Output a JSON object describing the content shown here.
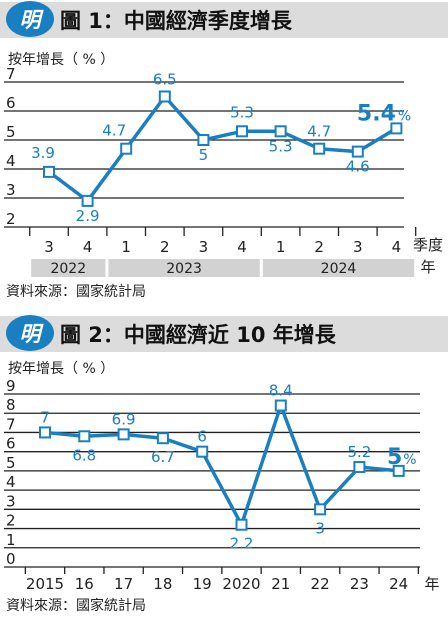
{
  "chart_data": [
    {
      "type": "line",
      "title": "圖 1：中國經濟季度增長",
      "badge": "明",
      "ylabel": "按年增長（ % ）",
      "xlabel_lines": [
        "季度",
        "年"
      ],
      "ylim": [
        2,
        7
      ],
      "yticks": [
        "2",
        "3",
        "4",
        "5",
        "6",
        "7"
      ],
      "categories": [
        "3",
        "4",
        "1",
        "2",
        "3",
        "4",
        "1",
        "2",
        "3",
        "4"
      ],
      "values": [
        3.9,
        2.9,
        4.7,
        6.5,
        5,
        5.3,
        5.3,
        4.7,
        4.6,
        5.4
      ],
      "data_labels": [
        "3.9",
        "2.9",
        "4.7",
        "6.5",
        "5",
        "5.3",
        "5.3",
        "4.7",
        "4.6",
        "5.4"
      ],
      "last_label_suffix": "%",
      "years": [
        {
          "label": "2022",
          "span": 2
        },
        {
          "label": "2023",
          "span": 4
        },
        {
          "label": "2024",
          "span": 4
        }
      ],
      "source": "資料來源：國家統計局",
      "line_color": "#1a7fc0",
      "grid": "horizontal"
    },
    {
      "type": "line",
      "title": "圖 2：中國經濟近 10 年增長",
      "badge": "明",
      "ylabel": "按年增長（ % ）",
      "xlabel": "年",
      "ylim": [
        0,
        9
      ],
      "yticks": [
        "0",
        "1",
        "2",
        "3",
        "4",
        "5",
        "6",
        "7",
        "8",
        "9"
      ],
      "categories": [
        "2015",
        "16",
        "17",
        "18",
        "19",
        "2020",
        "21",
        "22",
        "23",
        "24"
      ],
      "values": [
        7,
        6.8,
        6.9,
        6.7,
        6,
        2.2,
        8.4,
        3,
        5.2,
        5
      ],
      "data_labels": [
        "7",
        "6.8",
        "6.9",
        "6.7",
        "6",
        "2.2",
        "8.4",
        "3",
        "5.2",
        "5"
      ],
      "last_label_suffix": "%",
      "source": "資料來源：國家統計局",
      "line_color": "#1a7fc0",
      "grid": "horizontal"
    }
  ]
}
